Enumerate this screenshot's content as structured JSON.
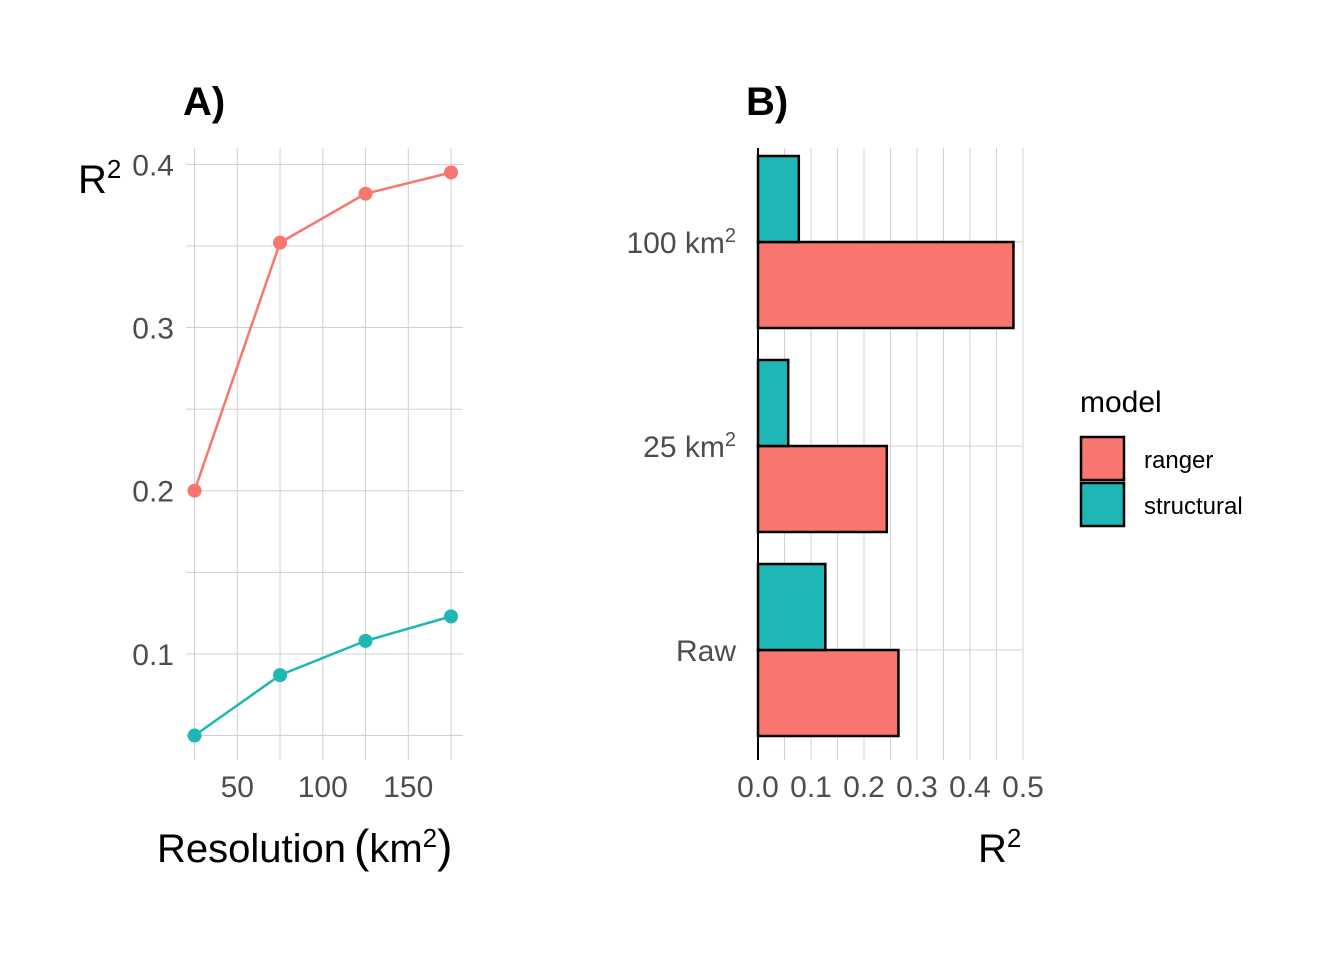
{
  "chart_data": [
    {
      "type": "line",
      "panel_tag": "A)",
      "xlabel": "Resolution",
      "xlabel_unit_base": "km",
      "xlabel_unit_sup": "2",
      "ylabel_base": "R",
      "ylabel_sup": "2",
      "x": [
        25,
        75,
        125,
        175
      ],
      "xlim": [
        20,
        182
      ],
      "ylim": [
        0.035,
        0.41
      ],
      "x_ticks": [
        "50",
        "100",
        "150"
      ],
      "y_ticks": [
        "0.1",
        "0.2",
        "0.3",
        "0.4"
      ],
      "grid": true,
      "series": [
        {
          "name": "ranger",
          "color": "#F8766D",
          "values": [
            0.2,
            0.352,
            0.382,
            0.395
          ]
        },
        {
          "name": "structural",
          "color": "#1FB7B6",
          "values": [
            0.05,
            0.087,
            0.108,
            0.123
          ]
        }
      ]
    },
    {
      "type": "bar",
      "orientation": "horizontal",
      "panel_tag": "B)",
      "categories": [
        {
          "base": "Raw",
          "sup": ""
        },
        {
          "base": "25 km",
          "sup": "2"
        },
        {
          "base": "100 km",
          "sup": "2"
        }
      ],
      "xlabel_base": "R",
      "xlabel_sup": "2",
      "xlim": [
        0,
        0.5
      ],
      "x_ticks": [
        "0.0",
        "0.1",
        "0.2",
        "0.3",
        "0.4",
        "0.5"
      ],
      "grid": true,
      "series": [
        {
          "name": "ranger",
          "color": "#F8766D",
          "values": [
            0.265,
            0.243,
            0.482
          ]
        },
        {
          "name": "structural",
          "color": "#1FB7B6",
          "values": [
            0.127,
            0.057,
            0.077
          ]
        }
      ],
      "legend": {
        "title": "model",
        "position": "right",
        "items": [
          {
            "label": "ranger",
            "color": "#F8766D"
          },
          {
            "label": "structural",
            "color": "#1FB7B6"
          }
        ]
      }
    }
  ]
}
